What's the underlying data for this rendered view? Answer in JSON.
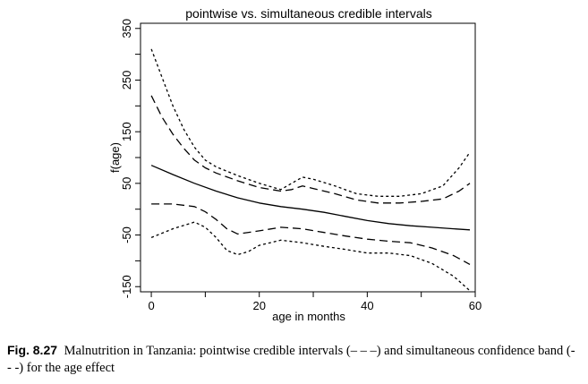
{
  "chart_data": {
    "type": "line",
    "title": "pointwise vs. simultaneous credible intervals",
    "xlabel": "age in months",
    "ylabel": "f(age)",
    "xlim": [
      -2,
      60
    ],
    "ylim": [
      -160,
      360
    ],
    "xticks": [
      0,
      20,
      40,
      60
    ],
    "yticks": [
      -150,
      -50,
      50,
      150,
      250,
      350
    ],
    "grid": false,
    "legend": "none",
    "series": [
      {
        "style": "solid",
        "x": [
          0,
          4,
          8,
          12,
          16,
          20,
          24,
          28,
          32,
          36,
          40,
          44,
          48,
          52,
          56,
          59
        ],
        "y": [
          85,
          67,
          50,
          35,
          22,
          12,
          5,
          0,
          -6,
          -14,
          -22,
          -28,
          -32,
          -35,
          -38,
          -40
        ]
      },
      {
        "style": "dashed",
        "x": [
          0,
          2,
          4,
          6,
          8,
          10,
          12,
          16,
          20,
          24,
          26,
          28,
          30,
          34,
          38,
          42,
          46,
          50,
          54,
          57,
          59
        ],
        "y": [
          220,
          178,
          145,
          118,
          95,
          80,
          70,
          55,
          42,
          35,
          38,
          45,
          40,
          30,
          18,
          12,
          12,
          15,
          20,
          35,
          50
        ]
      },
      {
        "style": "dashed",
        "x": [
          0,
          4,
          8,
          10,
          12,
          14,
          16,
          20,
          24,
          28,
          32,
          36,
          40,
          44,
          48,
          52,
          56,
          59
        ],
        "y": [
          10,
          10,
          5,
          -5,
          -20,
          -38,
          -48,
          -42,
          -35,
          -38,
          -45,
          -52,
          -58,
          -62,
          -65,
          -75,
          -90,
          -107
        ]
      },
      {
        "style": "dotted",
        "x": [
          0,
          2,
          4,
          6,
          8,
          10,
          12,
          16,
          20,
          24,
          26,
          28,
          30,
          34,
          38,
          42,
          46,
          50,
          54,
          57,
          59
        ],
        "y": [
          310,
          255,
          200,
          155,
          120,
          95,
          82,
          65,
          50,
          38,
          50,
          62,
          58,
          45,
          30,
          25,
          25,
          30,
          45,
          80,
          110
        ]
      },
      {
        "style": "dotted",
        "x": [
          0,
          4,
          8,
          10,
          12,
          14,
          16,
          18,
          20,
          24,
          28,
          32,
          36,
          40,
          44,
          48,
          52,
          56,
          59
        ],
        "y": [
          -55,
          -38,
          -25,
          -35,
          -55,
          -80,
          -88,
          -82,
          -70,
          -60,
          -65,
          -72,
          -78,
          -85,
          -85,
          -90,
          -105,
          -130,
          -158
        ]
      }
    ]
  },
  "caption": {
    "label": "Fig. 8.27",
    "text": "Malnutrition in Tanzania: pointwise credible intervals (– – –) and simultaneous confidence band (- - -) for the age effect"
  }
}
